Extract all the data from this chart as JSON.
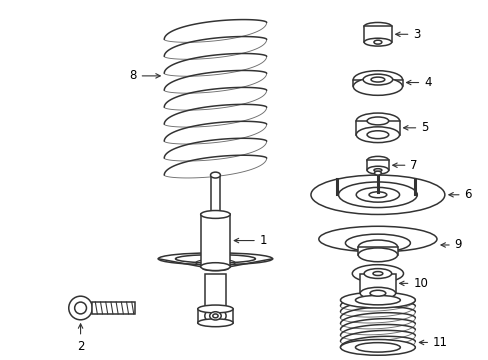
{
  "bg_color": "#ffffff",
  "line_color": "#333333",
  "lw": 1.1,
  "figsize": [
    4.89,
    3.6
  ],
  "dpi": 100,
  "label_fs": 8.5
}
